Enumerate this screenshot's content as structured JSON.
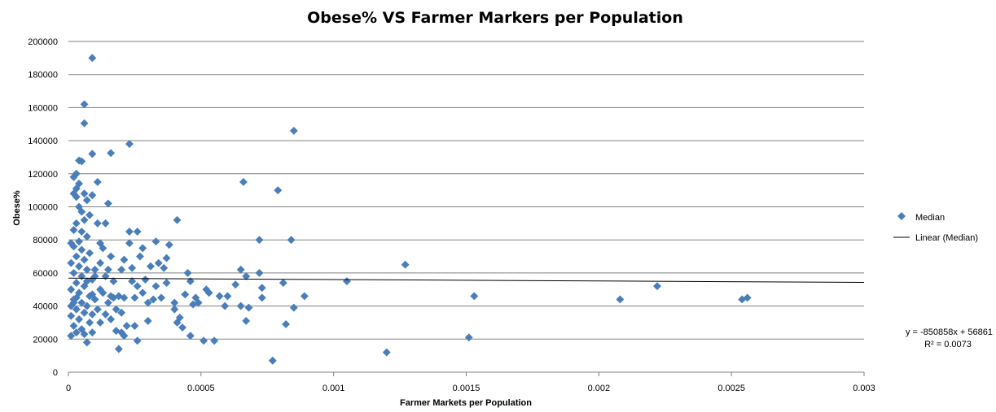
{
  "chart_data": {
    "type": "scatter",
    "title": "Obese% VS Farmer Markers per Population",
    "xlabel": "Farmer Markets per Population",
    "ylabel": "Obese%",
    "xlim": [
      0,
      0.003
    ],
    "ylim": [
      0,
      200000
    ],
    "x_ticks": [
      "0",
      "0.0005",
      "0.001",
      "0.0015",
      "0.002",
      "0.0025",
      "0.003"
    ],
    "y_ticks": [
      "0",
      "20000",
      "40000",
      "60000",
      "80000",
      "100000",
      "120000",
      "140000",
      "160000",
      "180000",
      "200000"
    ],
    "grid": "horizontal",
    "legend_position": "right",
    "colors": {
      "marker": "#4a7ebb",
      "trendline": "#000000",
      "grid": "#808080"
    },
    "series": [
      {
        "name": "Median",
        "points": [
          [
            9e-05,
            190000
          ],
          [
            6e-05,
            162000
          ],
          [
            6e-05,
            150500
          ],
          [
            0.00023,
            138000
          ],
          [
            0.00016,
            132500
          ],
          [
            9e-05,
            132000
          ],
          [
            4e-05,
            128000
          ],
          [
            5e-05,
            127500
          ],
          [
            0.00011,
            115000
          ],
          [
            4e-05,
            114000
          ],
          [
            3e-05,
            111000
          ],
          [
            2e-05,
            108000
          ],
          [
            3e-05,
            106000
          ],
          [
            6e-05,
            108000
          ],
          [
            9e-05,
            107000
          ],
          [
            3e-05,
            120000
          ],
          [
            2e-05,
            118000
          ],
          [
            7e-05,
            104000
          ],
          [
            4e-05,
            100000
          ],
          [
            5e-05,
            97000
          ],
          [
            8e-05,
            95000
          ],
          [
            6e-05,
            92000
          ],
          [
            3e-05,
            90000
          ],
          [
            2e-05,
            86000
          ],
          [
            5e-05,
            85000
          ],
          [
            7e-05,
            82000
          ],
          [
            4e-05,
            79000
          ],
          [
            1e-05,
            78000
          ],
          [
            2e-05,
            76000
          ],
          [
            5e-05,
            74000
          ],
          [
            8e-05,
            72000
          ],
          [
            3e-05,
            70000
          ],
          [
            6e-05,
            68000
          ],
          [
            1e-05,
            66000
          ],
          [
            4e-05,
            64000
          ],
          [
            7e-05,
            62000
          ],
          [
            2e-05,
            60000
          ],
          [
            5e-05,
            58000
          ],
          [
            9e-05,
            56000
          ],
          [
            3e-05,
            54000
          ],
          [
            6e-05,
            52000
          ],
          [
            1e-05,
            50000
          ],
          [
            4e-05,
            48000
          ],
          [
            8e-05,
            46000
          ],
          [
            2e-05,
            44000
          ],
          [
            5e-05,
            42000
          ],
          [
            7e-05,
            40000
          ],
          [
            3e-05,
            38000
          ],
          [
            6e-05,
            36000
          ],
          [
            1e-05,
            34000
          ],
          [
            4e-05,
            32000
          ],
          [
            8e-05,
            30000
          ],
          [
            2e-05,
            28000
          ],
          [
            5e-05,
            26000
          ],
          [
            3e-05,
            24000
          ],
          [
            1e-05,
            22000
          ],
          [
            6e-05,
            23000
          ],
          [
            2e-05,
            42000
          ],
          [
            3e-05,
            45000
          ],
          [
            1e-05,
            40000
          ],
          [
            7e-05,
            55000
          ],
          [
            9e-05,
            47000
          ],
          [
            0.0001,
            44000
          ],
          [
            0.00012,
            50000
          ],
          [
            0.0001,
            62000
          ],
          [
            0.00013,
            48000
          ],
          [
            0.00011,
            38000
          ],
          [
            9e-05,
            35000
          ],
          [
            0.0001,
            58000
          ],
          [
            0.00012,
            66000
          ],
          [
            0.00014,
            58000
          ],
          [
            0.00013,
            75000
          ],
          [
            0.00015,
            62000
          ],
          [
            0.00011,
            90000
          ],
          [
            0.00014,
            90000
          ],
          [
            0.00015,
            102000
          ],
          [
            0.00012,
            78000
          ],
          [
            0.00016,
            46000
          ],
          [
            0.00015,
            42000
          ],
          [
            0.00017,
            45000
          ],
          [
            0.00014,
            35000
          ],
          [
            0.00016,
            32000
          ],
          [
            0.00018,
            38000
          ],
          [
            0.00017,
            55000
          ],
          [
            0.00016,
            70000
          ],
          [
            0.00019,
            46000
          ],
          [
            0.00018,
            25000
          ],
          [
            7e-05,
            18000
          ],
          [
            9e-05,
            24000
          ],
          [
            0.00012,
            30000
          ],
          [
            0.00019,
            14000
          ],
          [
            0.0002,
            24000
          ],
          [
            0.00021,
            22000
          ],
          [
            0.00022,
            28000
          ],
          [
            0.0002,
            36000
          ],
          [
            0.00021,
            45000
          ],
          [
            0.0002,
            62000
          ],
          [
            0.00021,
            68000
          ],
          [
            0.00023,
            78000
          ],
          [
            0.00023,
            85000
          ],
          [
            0.00024,
            63000
          ],
          [
            0.00024,
            55000
          ],
          [
            0.00025,
            45000
          ],
          [
            0.00026,
            19000
          ],
          [
            0.00025,
            28000
          ],
          [
            0.00026,
            52000
          ],
          [
            0.00027,
            70000
          ],
          [
            0.00026,
            85000
          ],
          [
            0.00028,
            48000
          ],
          [
            0.00028,
            75000
          ],
          [
            0.00029,
            56000
          ],
          [
            0.0003,
            42000
          ],
          [
            0.0003,
            31000
          ],
          [
            0.00031,
            64000
          ],
          [
            0.00032,
            44000
          ],
          [
            0.00033,
            52000
          ],
          [
            0.00033,
            79000
          ],
          [
            0.00034,
            66000
          ],
          [
            0.00035,
            45000
          ],
          [
            0.00036,
            63000
          ],
          [
            0.00037,
            69000
          ],
          [
            0.00037,
            54000
          ],
          [
            0.00038,
            77000
          ],
          [
            0.0004,
            38000
          ],
          [
            0.0004,
            42000
          ],
          [
            0.00041,
            92000
          ],
          [
            0.00041,
            30000
          ],
          [
            0.00042,
            33000
          ],
          [
            0.00043,
            27000
          ],
          [
            0.00044,
            47000
          ],
          [
            0.00045,
            60000
          ],
          [
            0.00046,
            55000
          ],
          [
            0.00047,
            41000
          ],
          [
            0.00046,
            22000
          ],
          [
            0.00048,
            45000
          ],
          [
            0.00049,
            42000
          ],
          [
            0.00051,
            19000
          ],
          [
            0.00052,
            50000
          ],
          [
            0.00053,
            48000
          ],
          [
            0.00055,
            19000
          ],
          [
            0.00057,
            46000
          ],
          [
            0.00059,
            40000
          ],
          [
            0.0006,
            46000
          ],
          [
            0.00063,
            53000
          ],
          [
            0.00065,
            62000
          ],
          [
            0.00065,
            40000
          ],
          [
            0.00066,
            115000
          ],
          [
            0.00067,
            58000
          ],
          [
            0.00067,
            31000
          ],
          [
            0.00068,
            39000
          ],
          [
            0.00072,
            60000
          ],
          [
            0.00072,
            80000
          ],
          [
            0.00073,
            51000
          ],
          [
            0.00073,
            45000
          ],
          [
            0.00077,
            7000
          ],
          [
            0.00079,
            110000
          ],
          [
            0.00081,
            54000
          ],
          [
            0.00082,
            29000
          ],
          [
            0.00084,
            80000
          ],
          [
            0.00085,
            39000
          ],
          [
            0.00085,
            146000
          ],
          [
            0.00089,
            46000
          ],
          [
            0.00105,
            55000
          ],
          [
            0.0012,
            12000
          ],
          [
            0.00127,
            65000
          ],
          [
            0.00151,
            21000
          ],
          [
            0.00153,
            46000
          ],
          [
            0.00208,
            44000
          ],
          [
            0.00222,
            52000
          ],
          [
            0.00254,
            44000
          ],
          [
            0.00256,
            45000
          ]
        ]
      }
    ],
    "trendline": {
      "name": "Linear (Median)",
      "slope": -850858,
      "intercept": 56861,
      "equation": "y = -850858x + 56861",
      "r2": "R² = 0.0073"
    }
  }
}
